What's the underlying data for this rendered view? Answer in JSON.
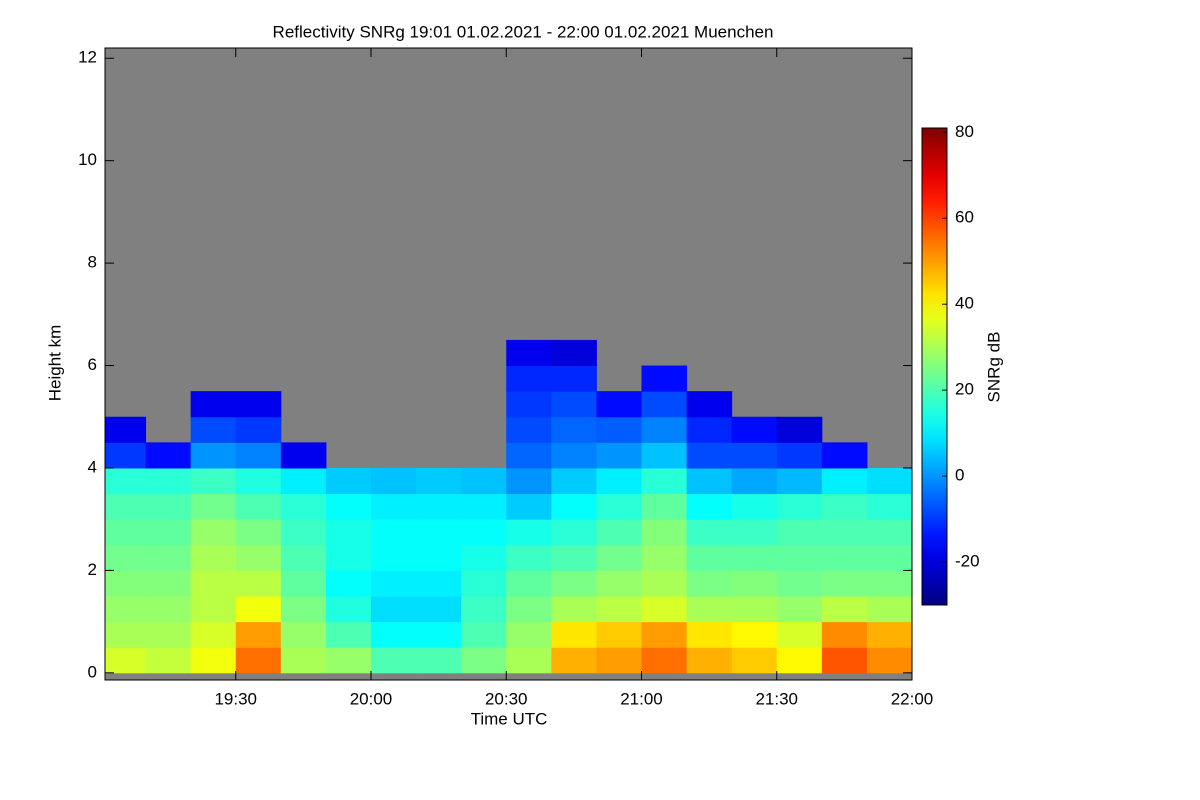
{
  "chart_data": {
    "type": "heatmap",
    "title": "Reflectivity SNRg   19:01 01.02.2021 - 22:00 01.02.2021 Muenchen",
    "xlabel": "Time UTC",
    "ylabel": "Height km",
    "colorbar_label": "SNRg dB",
    "colormap": "jet",
    "background": "#808080",
    "xlim": [
      19.01667,
      22.0
    ],
    "xticks": [
      {
        "value": 19.5,
        "label": "19:30"
      },
      {
        "value": 20,
        "label": "20:00"
      },
      {
        "value": 20.5,
        "label": "20:30"
      },
      {
        "value": 21,
        "label": "21:00"
      },
      {
        "value": 21.5,
        "label": "21:30"
      },
      {
        "value": 22,
        "label": "22:00"
      }
    ],
    "ylim": [
      -0.14,
      12.2
    ],
    "yticks": [
      0,
      2,
      4,
      6,
      8,
      10,
      12
    ],
    "zlim": [
      -30,
      81
    ],
    "zticks": [
      -20,
      0,
      20,
      40,
      60,
      80
    ],
    "x_edges": [
      19.01667,
      19.16667,
      19.33333,
      19.5,
      19.66667,
      19.83333,
      20,
      20.16667,
      20.33333,
      20.5,
      20.66667,
      20.83333,
      21,
      21.16667,
      21.33333,
      21.5,
      21.66667,
      21.83333,
      22
    ],
    "y_edges": [
      0,
      0.5,
      1,
      1.5,
      2,
      2.5,
      3,
      3.5,
      4,
      4.5,
      5,
      5.5,
      6,
      6.5
    ],
    "z": [
      [
        35,
        33,
        38,
        55,
        30,
        28,
        20,
        20,
        25,
        30,
        48,
        50,
        55,
        48,
        45,
        40,
        58,
        52
      ],
      [
        30,
        30,
        35,
        50,
        28,
        20,
        12,
        12,
        20,
        28,
        42,
        45,
        50,
        42,
        40,
        35,
        52,
        48
      ],
      [
        28,
        28,
        32,
        38,
        25,
        15,
        8,
        8,
        18,
        25,
        30,
        32,
        35,
        30,
        30,
        28,
        32,
        30
      ],
      [
        26,
        26,
        32,
        32,
        22,
        12,
        10,
        10,
        16,
        22,
        25,
        28,
        30,
        25,
        26,
        24,
        25,
        25
      ],
      [
        24,
        24,
        30,
        28,
        20,
        14,
        12,
        12,
        14,
        18,
        20,
        24,
        28,
        22,
        22,
        22,
        22,
        22
      ],
      [
        22,
        22,
        28,
        25,
        18,
        14,
        12,
        12,
        12,
        14,
        16,
        20,
        26,
        18,
        18,
        20,
        20,
        20
      ],
      [
        20,
        20,
        24,
        20,
        16,
        12,
        10,
        10,
        10,
        6,
        12,
        16,
        22,
        12,
        14,
        16,
        18,
        16
      ],
      [
        16,
        16,
        18,
        15,
        10,
        6,
        5,
        6,
        5,
        0,
        6,
        10,
        16,
        5,
        2,
        4,
        10,
        8
      ],
      [
        -10,
        -15,
        0,
        -2,
        -18,
        null,
        null,
        null,
        null,
        -5,
        -2,
        0,
        5,
        -8,
        -8,
        -10,
        -15,
        null
      ],
      [
        -18,
        null,
        -8,
        -10,
        null,
        null,
        null,
        null,
        null,
        -8,
        -5,
        -6,
        -2,
        -12,
        -15,
        -20,
        null,
        null
      ],
      [
        null,
        null,
        -18,
        -18,
        null,
        null,
        null,
        null,
        null,
        -10,
        -8,
        -15,
        -8,
        -18,
        null,
        null,
        null,
        null
      ],
      [
        null,
        null,
        null,
        null,
        null,
        null,
        null,
        null,
        null,
        -12,
        -12,
        null,
        -15,
        null,
        null,
        null,
        null,
        null
      ],
      [
        null,
        null,
        null,
        null,
        null,
        null,
        null,
        null,
        null,
        -18,
        -20,
        null,
        null,
        null,
        null,
        null,
        null,
        null
      ]
    ]
  }
}
